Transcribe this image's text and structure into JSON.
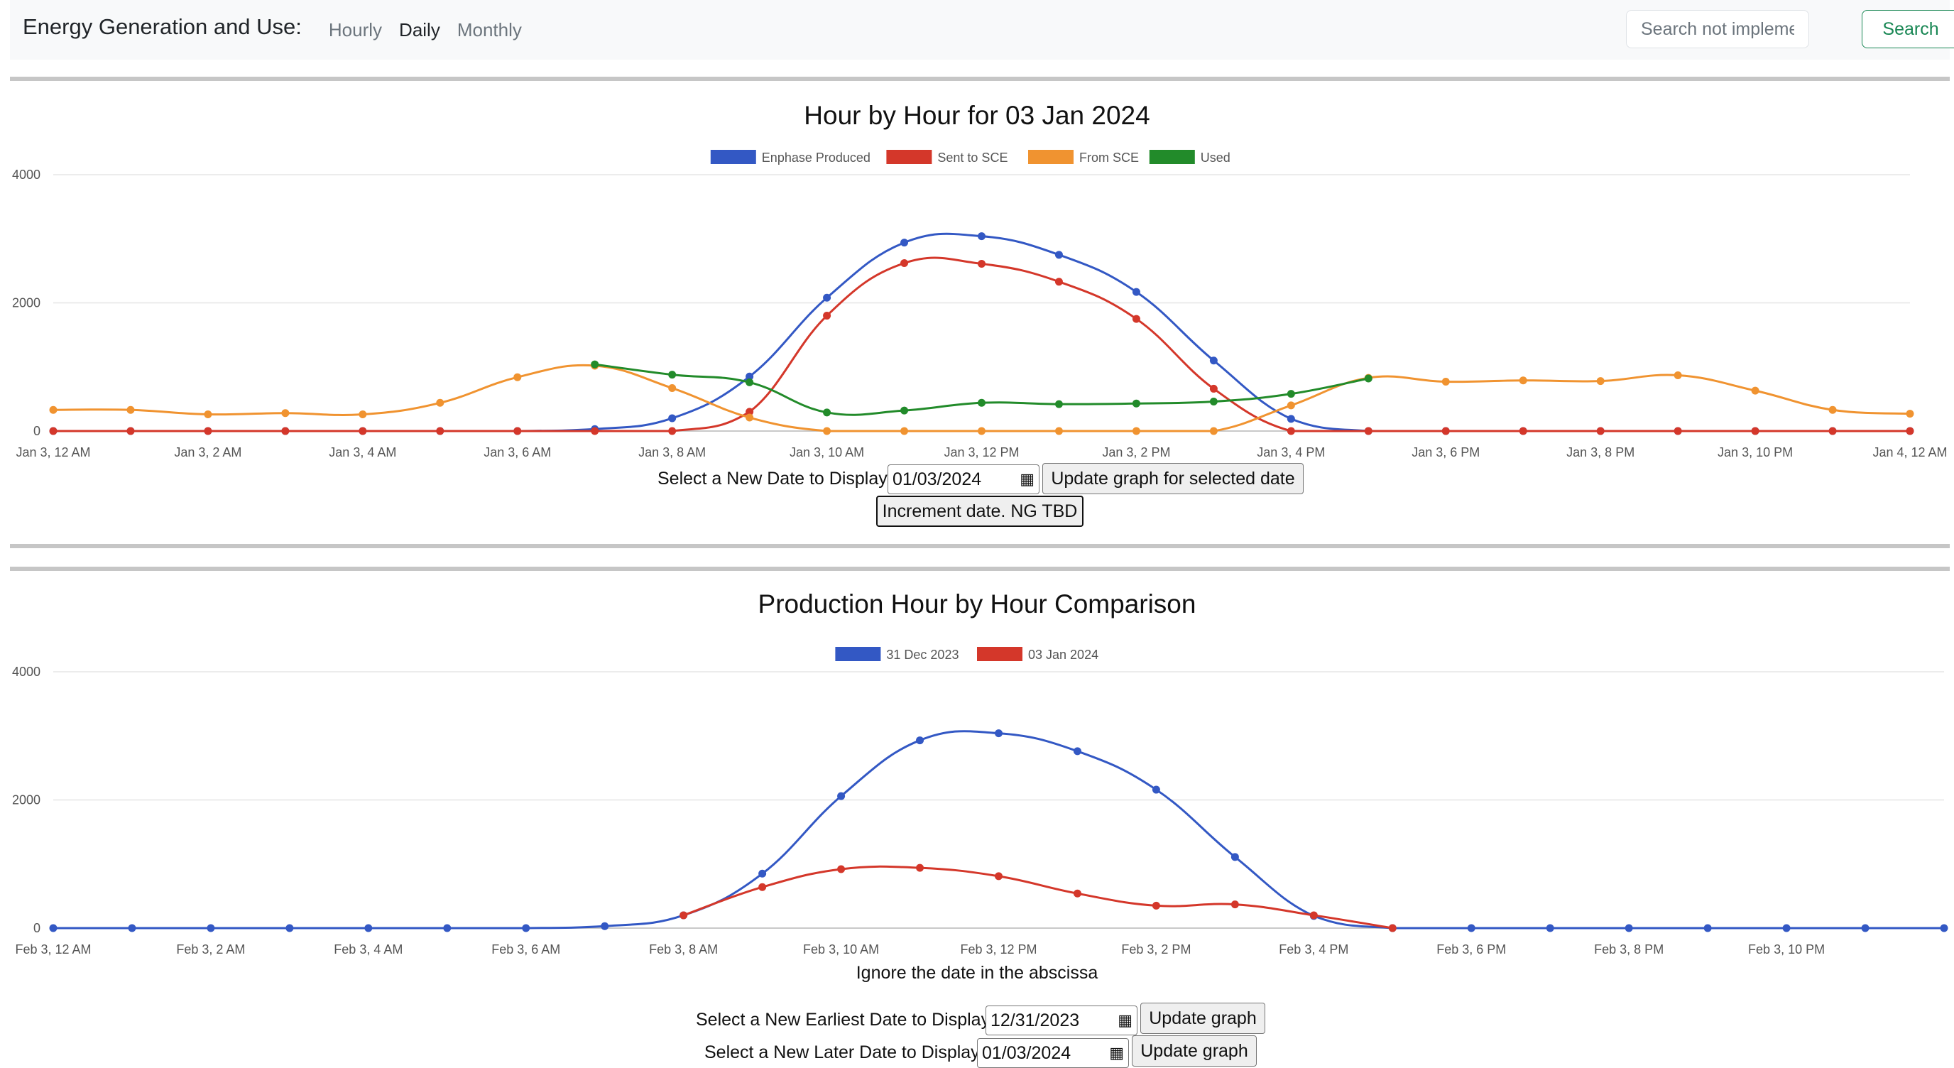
{
  "navbar": {
    "brand": "Energy Generation and Use:",
    "links": [
      "Hourly",
      "Daily",
      "Monthly"
    ],
    "active": "Daily",
    "search_placeholder": "Search not implemented",
    "search_button": "Search"
  },
  "daily": {
    "title": "Hour by Hour for 03 Jan 2024",
    "select_label": "Select a New Date to Display",
    "date_value": "01/03/2024",
    "update_button": "Update graph for selected date",
    "increment_button": "Increment date. NG TBD"
  },
  "comparison": {
    "title": "Production Hour by Hour Comparison",
    "abscissa_note": "Ignore the date in the abscissa",
    "earliest_label": "Select a New Earliest Date to Display",
    "earliest_value": "12/31/2023",
    "earliest_button": "Update graph",
    "later_label": "Select a New Later Date to Display",
    "later_value": "01/03/2024",
    "later_button": "Update graph"
  },
  "colors": {
    "enphase": "#3358c4",
    "sent": "#d4372a",
    "from_sce": "#f09330",
    "used": "#228b2a",
    "grid": "#e6e6e6"
  },
  "chart_data": [
    {
      "type": "line",
      "title": "Hour by Hour for 03 Jan 2024",
      "x": [
        0,
        1,
        2,
        3,
        4,
        5,
        6,
        7,
        8,
        9,
        10,
        11,
        12,
        13,
        14,
        15,
        16,
        17,
        18,
        19,
        20,
        21,
        22,
        23,
        24
      ],
      "x_tick_labels": [
        "Jan 3, 12 AM",
        "Jan 3, 2 AM",
        "Jan 3, 4 AM",
        "Jan 3, 6 AM",
        "Jan 3, 8 AM",
        "Jan 3, 10 AM",
        "Jan 3, 12 PM",
        "Jan 3, 2 PM",
        "Jan 3, 4 PM",
        "Jan 3, 6 PM",
        "Jan 3, 8 PM",
        "Jan 3, 10 PM",
        "Jan 4, 12 AM"
      ],
      "ylim": [
        0,
        4000
      ],
      "y_ticks": [
        0,
        2000,
        4000
      ],
      "grid": true,
      "legend_position": "top-center",
      "series": [
        {
          "name": "Enphase Produced",
          "color": "#3358c4",
          "values": [
            0,
            0,
            0,
            0,
            0,
            0,
            0,
            30,
            200,
            850,
            2080,
            2940,
            3040,
            2750,
            2170,
            1100,
            190,
            0,
            0,
            0,
            0,
            0,
            0,
            0,
            0
          ]
        },
        {
          "name": "Sent to SCE",
          "color": "#d4372a",
          "values": [
            0,
            0,
            0,
            0,
            0,
            0,
            0,
            0,
            0,
            300,
            1800,
            2620,
            2610,
            2330,
            1750,
            660,
            0,
            0,
            0,
            0,
            0,
            0,
            0,
            0,
            0
          ]
        },
        {
          "name": "From SCE",
          "color": "#f09330",
          "values": [
            330,
            330,
            260,
            280,
            260,
            440,
            840,
            1020,
            670,
            210,
            0,
            0,
            0,
            0,
            0,
            0,
            400,
            830,
            770,
            790,
            780,
            870,
            630,
            330,
            270
          ]
        },
        {
          "name": "Used",
          "color": "#228b2a",
          "values": [
            null,
            null,
            null,
            null,
            null,
            null,
            null,
            1040,
            880,
            760,
            290,
            320,
            440,
            420,
            430,
            460,
            580,
            820,
            null,
            null,
            null,
            null,
            null,
            null,
            null
          ]
        }
      ]
    },
    {
      "type": "line",
      "title": "Production Hour by Hour Comparison",
      "x": [
        0,
        1,
        2,
        3,
        4,
        5,
        6,
        7,
        8,
        9,
        10,
        11,
        12,
        13,
        14,
        15,
        16,
        17,
        18,
        19,
        20,
        21,
        22,
        23,
        24
      ],
      "x_tick_labels": [
        "Feb 3, 12 AM",
        "Feb 3, 2 AM",
        "Feb 3, 4 AM",
        "Feb 3, 6 AM",
        "Feb 3, 8 AM",
        "Feb 3, 10 AM",
        "Feb 3, 12 PM",
        "Feb 3, 2 PM",
        "Feb 3, 4 PM",
        "Feb 3, 6 PM",
        "Feb 3, 8 PM",
        "Feb 3, 10 PM"
      ],
      "ylim": [
        0,
        4000
      ],
      "y_ticks": [
        0,
        2000,
        4000
      ],
      "grid": true,
      "legend_position": "top-center",
      "series": [
        {
          "name": "31 Dec 2023",
          "color": "#3358c4",
          "values": [
            0,
            0,
            0,
            0,
            0,
            0,
            0,
            30,
            200,
            850,
            2060,
            2930,
            3040,
            2760,
            2160,
            1110,
            190,
            0,
            0,
            0,
            0,
            0,
            0,
            0,
            0
          ]
        },
        {
          "name": "03 Jan 2024",
          "color": "#d4372a",
          "values": [
            null,
            null,
            null,
            null,
            null,
            null,
            null,
            null,
            200,
            640,
            920,
            940,
            810,
            540,
            350,
            370,
            200,
            0,
            null,
            null,
            null,
            null,
            null,
            null,
            null
          ]
        }
      ]
    }
  ]
}
